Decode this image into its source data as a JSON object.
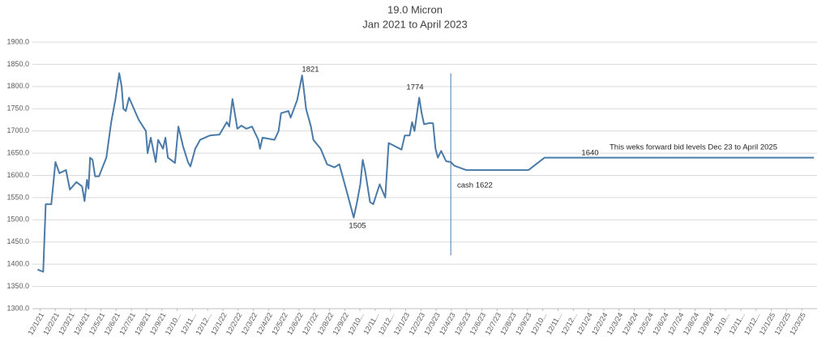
{
  "chart_data": {
    "type": "line",
    "title": "19.0 Micron",
    "subtitle": "Jan 2021 to April 2023",
    "xlim": [
      -0.5,
      51
    ],
    "ylim": [
      1300,
      1900
    ],
    "grid": true,
    "yticks": [
      {
        "value": 1300,
        "label": "1300.0"
      },
      {
        "value": 1350,
        "label": "1350.0"
      },
      {
        "value": 1400,
        "label": "1400.0"
      },
      {
        "value": 1450,
        "label": "1450.0"
      },
      {
        "value": 1500,
        "label": "1500.0"
      },
      {
        "value": 1550,
        "label": "1550.0"
      },
      {
        "value": 1600,
        "label": "1600.0"
      },
      {
        "value": 1650,
        "label": "1650.0"
      },
      {
        "value": 1700,
        "label": "1700.0"
      },
      {
        "value": 1750,
        "label": "1750.0"
      },
      {
        "value": 1800,
        "label": "1800.0"
      },
      {
        "value": 1850,
        "label": "1850.0"
      },
      {
        "value": 1900,
        "label": "1900.0"
      }
    ],
    "xticks": [
      {
        "value": 0,
        "label": "12/1/21"
      },
      {
        "value": 1,
        "label": "12/2/21"
      },
      {
        "value": 2,
        "label": "12/3/21"
      },
      {
        "value": 3,
        "label": "12/4/21"
      },
      {
        "value": 4,
        "label": "12/5/21"
      },
      {
        "value": 5,
        "label": "12/6/21"
      },
      {
        "value": 6,
        "label": "12/7/21"
      },
      {
        "value": 7,
        "label": "12/8/21"
      },
      {
        "value": 8,
        "label": "12/9/21"
      },
      {
        "value": 9,
        "label": "12/10..."
      },
      {
        "value": 10,
        "label": "12/11..."
      },
      {
        "value": 11,
        "label": "12/12..."
      },
      {
        "value": 12,
        "label": "12/1/22"
      },
      {
        "value": 13,
        "label": "12/2/22"
      },
      {
        "value": 14,
        "label": "12/3/22"
      },
      {
        "value": 15,
        "label": "12/4/22"
      },
      {
        "value": 16,
        "label": "12/5/22"
      },
      {
        "value": 17,
        "label": "12/6/22"
      },
      {
        "value": 18,
        "label": "12/7/22"
      },
      {
        "value": 19,
        "label": "12/8/22"
      },
      {
        "value": 20,
        "label": "12/9/22"
      },
      {
        "value": 21,
        "label": "12/10..."
      },
      {
        "value": 22,
        "label": "12/11..."
      },
      {
        "value": 23,
        "label": "12/12..."
      },
      {
        "value": 24,
        "label": "12/1/23"
      },
      {
        "value": 25,
        "label": "12/2/23"
      },
      {
        "value": 26,
        "label": "12/3/23"
      },
      {
        "value": 27,
        "label": "12/4/23"
      },
      {
        "value": 28,
        "label": "12/5/23"
      },
      {
        "value": 29,
        "label": "12/6/23"
      },
      {
        "value": 30,
        "label": "12/7/23"
      },
      {
        "value": 31,
        "label": "12/8/23"
      },
      {
        "value": 32,
        "label": "12/9/23"
      },
      {
        "value": 33,
        "label": "12/10..."
      },
      {
        "value": 34,
        "label": "12/11..."
      },
      {
        "value": 35,
        "label": "12/12..."
      },
      {
        "value": 36,
        "label": "12/1/24"
      },
      {
        "value": 37,
        "label": "12/2/24"
      },
      {
        "value": 38,
        "label": "12/3/24"
      },
      {
        "value": 39,
        "label": "12/4/24"
      },
      {
        "value": 40,
        "label": "12/5/24"
      },
      {
        "value": 41,
        "label": "12/6/24"
      },
      {
        "value": 42,
        "label": "12/7/24"
      },
      {
        "value": 43,
        "label": "12/8/24"
      },
      {
        "value": 44,
        "label": "12/9/24"
      },
      {
        "value": 45,
        "label": "12/10..."
      },
      {
        "value": 46,
        "label": "12/11..."
      },
      {
        "value": 47,
        "label": "12/12..."
      },
      {
        "value": 48,
        "label": "12/1/25"
      },
      {
        "value": 49,
        "label": "12/2/25"
      },
      {
        "value": 50,
        "label": "12/3/25"
      }
    ],
    "series": [
      {
        "color": "#4a7aa8",
        "x": [
          -0.16,
          0.21,
          0.37,
          0.74,
          1.01,
          1.27,
          1.7,
          1.96,
          2.39,
          2.76,
          2.92,
          3.08,
          3.18,
          3.29,
          3.45,
          3.61,
          3.87,
          4.35,
          4.67,
          4.94,
          5.2,
          5.36,
          5.47,
          5.63,
          5.84,
          6.48,
          6.95,
          7.06,
          7.27,
          7.59,
          7.75,
          8.07,
          8.23,
          8.39,
          8.86,
          9.08,
          9.39,
          9.71,
          9.87,
          10.19,
          10.51,
          11.15,
          11.78,
          12.26,
          12.42,
          12.63,
          12.95,
          13.22,
          13.54,
          13.91,
          14.33,
          14.44,
          14.6,
          15.39,
          15.66,
          15.82,
          16.3,
          16.45,
          16.88,
          17.2,
          17.36,
          17.46,
          17.78,
          17.94,
          18.42,
          18.84,
          19.32,
          19.64,
          20.12,
          20.59,
          20.81,
          21.02,
          21.18,
          21.34,
          21.66,
          21.87,
          22.29,
          22.66,
          22.88,
          23.73,
          23.94,
          24.26,
          24.42,
          24.58,
          24.89,
          25.05,
          25.21,
          25.58,
          25.8,
          25.96,
          26.11,
          26.33,
          26.65,
          26.96,
          27.18,
          27.97,
          32.06,
          33.12,
          50.8
        ],
        "values": [
          1388,
          1383,
          1535,
          1535,
          1630,
          1605,
          1612,
          1568,
          1585,
          1575,
          1542,
          1590,
          1570,
          1640,
          1635,
          1598,
          1598,
          1640,
          1720,
          1770,
          1830,
          1800,
          1750,
          1745,
          1775,
          1725,
          1700,
          1650,
          1685,
          1630,
          1680,
          1660,
          1685,
          1640,
          1628,
          1710,
          1665,
          1630,
          1620,
          1660,
          1680,
          1690,
          1692,
          1720,
          1710,
          1772,
          1705,
          1712,
          1705,
          1710,
          1680,
          1660,
          1685,
          1680,
          1700,
          1740,
          1745,
          1730,
          1770,
          1825,
          1780,
          1750,
          1710,
          1680,
          1660,
          1625,
          1618,
          1625,
          1565,
          1505,
          1540,
          1580,
          1635,
          1610,
          1540,
          1535,
          1580,
          1550,
          1673,
          1658,
          1690,
          1690,
          1720,
          1700,
          1775,
          1740,
          1715,
          1718,
          1717,
          1660,
          1640,
          1655,
          1632,
          1630,
          1622,
          1612,
          1612,
          1640,
          1640
        ]
      }
    ],
    "reference_line": {
      "x": 26.96,
      "y": [
        1420,
        1830
      ]
    },
    "annotations": [
      "1821",
      "1774",
      "1505",
      "1640",
      "This  weks forward bid levels Dec 23 to April 2025",
      "cash  1622"
    ]
  }
}
